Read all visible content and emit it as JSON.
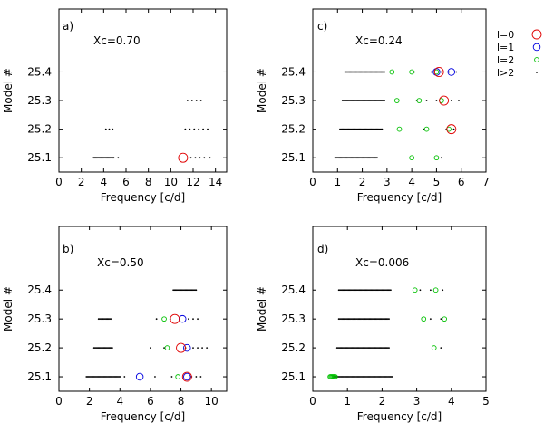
{
  "legend": {
    "entries": [
      {
        "label": "l=0",
        "color": "#e00000",
        "marker": "circle-large"
      },
      {
        "label": "l=1",
        "color": "#0000e0",
        "marker": "circle-medium"
      },
      {
        "label": "l=2",
        "color": "#00c000",
        "marker": "circle-small"
      },
      {
        "label": "l>2",
        "color": "#000000",
        "marker": "dot"
      }
    ]
  },
  "chart_data": [
    {
      "type": "scatter",
      "panel_label": "a)",
      "annotation": "Xc=0.70",
      "xlabel": "Frequency [c/d]",
      "ylabel": "Model #",
      "xlim": [
        0,
        15
      ],
      "xticks": [
        "0",
        "2",
        "4",
        "6",
        "8",
        "10",
        "12",
        "14"
      ],
      "xtick_values": [
        0,
        2,
        4,
        6,
        8,
        10,
        12,
        14
      ],
      "ylim": [
        25.05,
        25.62
      ],
      "yticks": [
        "25.1",
        "25.2",
        "25.3",
        "25.4"
      ],
      "ytick_values": [
        25.1,
        25.2,
        25.3,
        25.4
      ],
      "series": [
        {
          "name": "l>2",
          "marker": "dot",
          "points": [
            {
              "model": 25.1,
              "dense": [
                3.1,
                4.9
              ]
            },
            {
              "model": 25.1,
              "x": [
                5.3,
                11.8,
                12.2,
                12.6,
                13.0,
                13.5
              ]
            },
            {
              "model": 25.2,
              "x": [
                4.2,
                4.5,
                4.8,
                11.3,
                11.7,
                12.1,
                12.5,
                12.9,
                13.3
              ]
            },
            {
              "model": 25.3,
              "x": [
                11.5,
                11.9,
                12.3,
                12.7
              ]
            }
          ]
        },
        {
          "name": "l=0",
          "marker": "circle-large",
          "points": [
            {
              "model": 25.1,
              "x": [
                11.1
              ]
            }
          ]
        }
      ]
    },
    {
      "type": "scatter",
      "panel_label": "b)",
      "annotation": "Xc=0.50",
      "xlabel": "Frequency [c/d]",
      "ylabel": "Model #",
      "xlim": [
        0,
        11
      ],
      "xticks": [
        "0",
        "2",
        "4",
        "6",
        "8",
        "10"
      ],
      "xtick_values": [
        0,
        2,
        4,
        6,
        8,
        10
      ],
      "ylim": [
        25.05,
        25.62
      ],
      "yticks": [
        "25.1",
        "25.2",
        "25.3",
        "25.4"
      ],
      "ytick_values": [
        25.1,
        25.2,
        25.3,
        25.4
      ],
      "series": [
        {
          "name": "l>2",
          "marker": "dot",
          "points": [
            {
              "model": 25.1,
              "dense": [
                1.8,
                4.0
              ]
            },
            {
              "model": 25.1,
              "x": [
                4.3,
                6.3,
                7.4,
                8.7,
                9.0,
                9.3
              ]
            },
            {
              "model": 25.2,
              "dense": [
                2.3,
                3.5
              ]
            },
            {
              "model": 25.2,
              "x": [
                6.0,
                6.9,
                8.3,
                8.8,
                9.1,
                9.4,
                9.7
              ]
            },
            {
              "model": 25.3,
              "dense": [
                2.6,
                3.4
              ]
            },
            {
              "model": 25.3,
              "x": [
                6.4,
                7.3,
                8.5,
                8.8,
                9.1
              ]
            },
            {
              "model": 25.4,
              "dense": [
                7.5,
                9.0
              ]
            }
          ]
        },
        {
          "name": "l=2",
          "marker": "circle-small",
          "points": [
            {
              "model": 25.1,
              "x": [
                7.8
              ]
            },
            {
              "model": 25.2,
              "x": [
                7.1
              ]
            },
            {
              "model": 25.3,
              "x": [
                6.9
              ]
            }
          ]
        },
        {
          "name": "l=1",
          "marker": "circle-medium",
          "points": [
            {
              "model": 25.1,
              "x": [
                5.3,
                8.4
              ]
            },
            {
              "model": 25.2,
              "x": [
                8.4
              ]
            },
            {
              "model": 25.3,
              "x": [
                8.1
              ]
            }
          ]
        },
        {
          "name": "l=0",
          "marker": "circle-large",
          "points": [
            {
              "model": 25.1,
              "x": [
                8.4
              ]
            },
            {
              "model": 25.2,
              "x": [
                8.0
              ]
            },
            {
              "model": 25.3,
              "x": [
                7.6
              ]
            }
          ]
        }
      ]
    },
    {
      "type": "scatter",
      "panel_label": "c)",
      "annotation": "Xc=0.24",
      "xlabel": "Frequency [c/d]",
      "ylabel": "Model #",
      "xlim": [
        0,
        7
      ],
      "xticks": [
        "0",
        "1",
        "2",
        "3",
        "4",
        "5",
        "6",
        "7"
      ],
      "xtick_values": [
        0,
        1,
        2,
        3,
        4,
        5,
        6,
        7
      ],
      "ylim": [
        25.05,
        25.62
      ],
      "yticks": [
        "25.1",
        "25.2",
        "25.3",
        "25.4"
      ],
      "ytick_values": [
        25.1,
        25.2,
        25.3,
        25.4
      ],
      "series": [
        {
          "name": "l>2",
          "marker": "dot",
          "points": [
            {
              "model": 25.1,
              "dense": [
                0.9,
                2.6
              ]
            },
            {
              "model": 25.1,
              "x": [
                5.2
              ]
            },
            {
              "model": 25.2,
              "dense": [
                1.1,
                2.8
              ]
            },
            {
              "model": 25.2,
              "x": [
                4.5,
                5.4,
                5.7
              ]
            },
            {
              "model": 25.3,
              "dense": [
                1.2,
                2.9
              ]
            },
            {
              "model": 25.3,
              "x": [
                4.2,
                4.6,
                5.0,
                5.6,
                5.9
              ]
            },
            {
              "model": 25.4,
              "dense": [
                1.3,
                2.9
              ]
            },
            {
              "model": 25.4,
              "x": [
                4.1,
                4.8,
                5.2,
                5.5,
                5.8
              ]
            }
          ]
        },
        {
          "name": "l=2",
          "marker": "circle-small",
          "points": [
            {
              "model": 25.1,
              "x": [
                4.0,
                5.0
              ]
            },
            {
              "model": 25.2,
              "x": [
                3.5,
                4.6,
                5.5
              ]
            },
            {
              "model": 25.3,
              "x": [
                3.4,
                4.3,
                5.2
              ]
            },
            {
              "model": 25.4,
              "x": [
                3.2,
                4.0,
                5.0
              ]
            }
          ]
        },
        {
          "name": "l=1",
          "marker": "circle-medium",
          "points": [
            {
              "model": 25.4,
              "x": [
                5.0,
                5.6
              ]
            }
          ]
        },
        {
          "name": "l=0",
          "marker": "circle-large",
          "points": [
            {
              "model": 25.2,
              "x": [
                5.6
              ]
            },
            {
              "model": 25.3,
              "x": [
                5.3
              ]
            },
            {
              "model": 25.4,
              "x": [
                5.1
              ]
            }
          ]
        }
      ]
    },
    {
      "type": "scatter",
      "panel_label": "d)",
      "annotation": "Xc=0.006",
      "xlabel": "Frequency [c/d]",
      "ylabel": "Model #",
      "xlim": [
        0,
        5
      ],
      "xticks": [
        "0",
        "1",
        "2",
        "3",
        "4",
        "5"
      ],
      "xtick_values": [
        0,
        1,
        2,
        3,
        4,
        5
      ],
      "ylim": [
        25.05,
        25.62
      ],
      "yticks": [
        "25.1",
        "25.2",
        "25.3",
        "25.4"
      ],
      "ytick_values": [
        25.1,
        25.2,
        25.3,
        25.4
      ],
      "series": [
        {
          "name": "l>2",
          "marker": "dot",
          "points": [
            {
              "model": 25.1,
              "dense": [
                0.6,
                2.3
              ]
            },
            {
              "model": 25.2,
              "dense": [
                0.7,
                2.2
              ]
            },
            {
              "model": 25.2,
              "x": [
                3.7
              ]
            },
            {
              "model": 25.3,
              "dense": [
                0.75,
                2.2
              ]
            },
            {
              "model": 25.3,
              "x": [
                3.4,
                3.7
              ]
            },
            {
              "model": 25.4,
              "dense": [
                0.75,
                2.25
              ]
            },
            {
              "model": 25.4,
              "x": [
                3.1,
                3.4,
                3.75
              ]
            }
          ]
        },
        {
          "name": "l=2",
          "marker": "circle-small",
          "points": [
            {
              "model": 25.1,
              "x": [
                0.5,
                0.53,
                0.56,
                0.59,
                0.62,
                0.65
              ]
            },
            {
              "model": 25.2,
              "x": [
                3.5
              ]
            },
            {
              "model": 25.3,
              "x": [
                3.2,
                3.8
              ]
            },
            {
              "model": 25.4,
              "x": [
                2.95,
                3.55
              ]
            }
          ]
        }
      ]
    }
  ]
}
